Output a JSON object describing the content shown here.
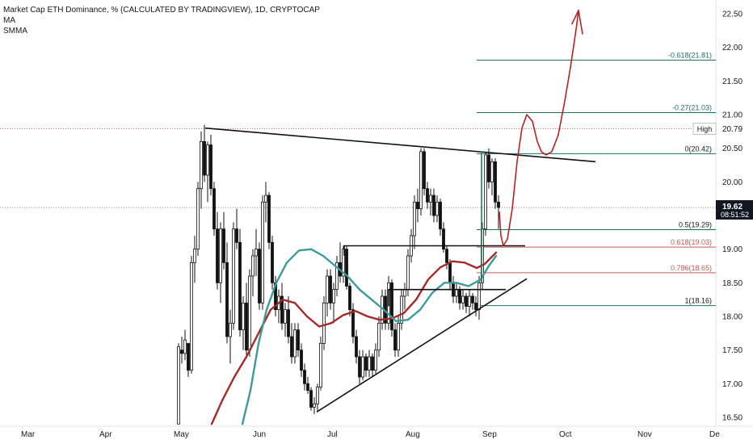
{
  "legend": {
    "title": "Market Cap ETH Dominance, % (CALCULATED BY TRADINGVIEW), 1D, CRYPTOCAP",
    "indicator_1": "MA",
    "indicator_2": "SMMA"
  },
  "price_scale": {
    "current_price": "19.62",
    "countdown": "08:51:52",
    "high_label": "High",
    "high_value": "20.79"
  },
  "colors": {
    "candle": "#111111",
    "ma_line": "#3e9a9a",
    "smma_line": "#a22a2a",
    "fib_line": "#1f6f66",
    "fib_red": "#c75a5a",
    "fib_text_green": "#1f6f66",
    "price_badge": "#131722",
    "trendline": "#111111",
    "drawing": "#b22525",
    "price_dotted": "#c04040"
  },
  "chart_data": {
    "type": "candlestick",
    "title": "Market Cap ETH Dominance, % (CALCULATED BY TRADINGVIEW), 1D, CRYPTOCAP",
    "xlabel": "",
    "ylabel": "",
    "x_ticks": [
      "Mar",
      "Apr",
      "May",
      "Jun",
      "Jul",
      "Aug",
      "Sep",
      "Oct",
      "Nov",
      "De"
    ],
    "y_ticks": [
      "22.50",
      "22.00",
      "21.50",
      "21.00",
      "20.50",
      "20.00",
      "19.50",
      "19.00",
      "18.50",
      "18.00",
      "17.50",
      "17.00",
      "16.50"
    ],
    "ylim": [
      16.4,
      22.6
    ],
    "grid": false,
    "series_description": [
      {
        "name": "MA",
        "color": "#3e9a9a"
      },
      {
        "name": "SMMA",
        "color": "#a22a2a"
      }
    ],
    "fib_levels": [
      {
        "ratio": "-0.618",
        "value": 21.81,
        "label": "-0.618(21.81)"
      },
      {
        "ratio": "-0.27",
        "value": 21.03,
        "label": "-0.27(21.03)"
      },
      {
        "ratio": "0",
        "value": 20.42,
        "label": "0(20.42)"
      },
      {
        "ratio": "0.5",
        "value": 19.29,
        "label": "0.5(19.29)"
      },
      {
        "ratio": "0.618",
        "value": 19.03,
        "label": "0.618(19.03)"
      },
      {
        "ratio": "0.786",
        "value": 18.65,
        "label": "0.786(18.65)"
      },
      {
        "ratio": "1",
        "value": 18.16,
        "label": "1(18.16)"
      }
    ],
    "high_value": 20.79,
    "current_price": 19.62,
    "ma": [
      {
        "x": 300,
        "y": 16.4
      },
      {
        "x": 310,
        "y": 16.9
      },
      {
        "x": 320,
        "y": 17.6
      },
      {
        "x": 330,
        "y": 18.1
      },
      {
        "x": 342,
        "y": 18.5
      },
      {
        "x": 355,
        "y": 18.8
      },
      {
        "x": 370,
        "y": 18.98
      },
      {
        "x": 385,
        "y": 19.0
      },
      {
        "x": 400,
        "y": 18.9
      },
      {
        "x": 415,
        "y": 18.75
      },
      {
        "x": 430,
        "y": 18.6
      },
      {
        "x": 445,
        "y": 18.4
      },
      {
        "x": 460,
        "y": 18.25
      },
      {
        "x": 475,
        "y": 18.1
      },
      {
        "x": 490,
        "y": 17.93
      },
      {
        "x": 505,
        "y": 17.95
      },
      {
        "x": 520,
        "y": 18.1
      },
      {
        "x": 535,
        "y": 18.35
      },
      {
        "x": 550,
        "y": 18.5
      },
      {
        "x": 565,
        "y": 18.5
      },
      {
        "x": 580,
        "y": 18.45
      },
      {
        "x": 595,
        "y": 18.55
      },
      {
        "x": 605,
        "y": 18.75
      },
      {
        "x": 614,
        "y": 18.9
      }
    ],
    "smma": [
      {
        "x": 262,
        "y": 16.4
      },
      {
        "x": 275,
        "y": 16.75
      },
      {
        "x": 290,
        "y": 17.1
      },
      {
        "x": 305,
        "y": 17.4
      },
      {
        "x": 320,
        "y": 17.75
      },
      {
        "x": 335,
        "y": 18.1
      },
      {
        "x": 350,
        "y": 18.25
      },
      {
        "x": 365,
        "y": 18.2
      },
      {
        "x": 380,
        "y": 18.0
      },
      {
        "x": 395,
        "y": 17.85
      },
      {
        "x": 410,
        "y": 17.9
      },
      {
        "x": 425,
        "y": 18.02
      },
      {
        "x": 440,
        "y": 18.08
      },
      {
        "x": 455,
        "y": 18.0
      },
      {
        "x": 470,
        "y": 17.95
      },
      {
        "x": 485,
        "y": 17.97
      },
      {
        "x": 500,
        "y": 18.05
      },
      {
        "x": 515,
        "y": 18.25
      },
      {
        "x": 530,
        "y": 18.55
      },
      {
        "x": 545,
        "y": 18.73
      },
      {
        "x": 560,
        "y": 18.82
      },
      {
        "x": 575,
        "y": 18.8
      },
      {
        "x": 590,
        "y": 18.72
      },
      {
        "x": 600,
        "y": 18.78
      },
      {
        "x": 614,
        "y": 18.95
      }
    ],
    "candles": [
      {
        "x": 221,
        "o": 16.4,
        "h": 17.6,
        "l": 16.4,
        "c": 17.55
      },
      {
        "x": 225,
        "o": 17.5,
        "h": 17.7,
        "l": 17.3,
        "c": 17.45
      },
      {
        "x": 229,
        "o": 17.45,
        "h": 17.8,
        "l": 17.35,
        "c": 17.65
      },
      {
        "x": 233,
        "o": 17.6,
        "h": 17.6,
        "l": 17.1,
        "c": 17.2
      },
      {
        "x": 237,
        "o": 17.2,
        "h": 18.9,
        "l": 17.15,
        "c": 18.8
      },
      {
        "x": 241,
        "o": 18.8,
        "h": 19.2,
        "l": 18.5,
        "c": 19.0
      },
      {
        "x": 245,
        "o": 19.0,
        "h": 20.0,
        "l": 18.9,
        "c": 19.9
      },
      {
        "x": 249,
        "o": 19.9,
        "h": 20.75,
        "l": 19.6,
        "c": 20.6
      },
      {
        "x": 253,
        "o": 20.6,
        "h": 20.85,
        "l": 20.0,
        "c": 20.1
      },
      {
        "x": 257,
        "o": 20.1,
        "h": 20.6,
        "l": 19.7,
        "c": 20.55
      },
      {
        "x": 261,
        "o": 20.55,
        "h": 20.7,
        "l": 19.8,
        "c": 19.9
      },
      {
        "x": 265,
        "o": 19.9,
        "h": 20.0,
        "l": 19.2,
        "c": 19.3
      },
      {
        "x": 269,
        "o": 19.3,
        "h": 19.55,
        "l": 18.4,
        "c": 18.5
      },
      {
        "x": 273,
        "o": 18.5,
        "h": 19.4,
        "l": 18.2,
        "c": 19.3
      },
      {
        "x": 277,
        "o": 19.3,
        "h": 19.55,
        "l": 18.7,
        "c": 18.8
      },
      {
        "x": 281,
        "o": 18.8,
        "h": 19.1,
        "l": 17.6,
        "c": 17.7
      },
      {
        "x": 285,
        "o": 17.7,
        "h": 18.1,
        "l": 17.3,
        "c": 17.9
      },
      {
        "x": 289,
        "o": 17.9,
        "h": 19.4,
        "l": 17.8,
        "c": 19.3
      },
      {
        "x": 293,
        "o": 19.3,
        "h": 19.6,
        "l": 19.0,
        "c": 19.1
      },
      {
        "x": 297,
        "o": 19.1,
        "h": 19.3,
        "l": 17.7,
        "c": 17.8
      },
      {
        "x": 301,
        "o": 17.8,
        "h": 18.3,
        "l": 17.5,
        "c": 18.2
      },
      {
        "x": 305,
        "o": 18.2,
        "h": 18.5,
        "l": 17.4,
        "c": 17.5
      },
      {
        "x": 309,
        "o": 17.5,
        "h": 18.7,
        "l": 17.4,
        "c": 18.6
      },
      {
        "x": 313,
        "o": 18.6,
        "h": 19.0,
        "l": 18.3,
        "c": 18.9
      },
      {
        "x": 317,
        "o": 18.9,
        "h": 19.3,
        "l": 18.6,
        "c": 19.0
      },
      {
        "x": 321,
        "o": 19.0,
        "h": 19.1,
        "l": 18.1,
        "c": 18.2
      },
      {
        "x": 325,
        "o": 18.2,
        "h": 19.8,
        "l": 18.1,
        "c": 19.7
      },
      {
        "x": 329,
        "o": 19.7,
        "h": 20.0,
        "l": 19.4,
        "c": 19.8
      },
      {
        "x": 333,
        "o": 19.8,
        "h": 19.85,
        "l": 19.0,
        "c": 19.1
      },
      {
        "x": 337,
        "o": 19.1,
        "h": 19.2,
        "l": 18.4,
        "c": 18.5
      },
      {
        "x": 341,
        "o": 18.5,
        "h": 18.6,
        "l": 18.0,
        "c": 18.1
      },
      {
        "x": 345,
        "o": 18.1,
        "h": 18.4,
        "l": 17.9,
        "c": 18.3
      },
      {
        "x": 349,
        "o": 18.3,
        "h": 18.5,
        "l": 17.8,
        "c": 17.9
      },
      {
        "x": 353,
        "o": 17.9,
        "h": 18.2,
        "l": 17.7,
        "c": 18.1
      },
      {
        "x": 357,
        "o": 18.1,
        "h": 18.3,
        "l": 17.6,
        "c": 17.7
      },
      {
        "x": 361,
        "o": 17.7,
        "h": 17.9,
        "l": 17.3,
        "c": 17.4
      },
      {
        "x": 365,
        "o": 17.4,
        "h": 17.9,
        "l": 17.3,
        "c": 17.8
      },
      {
        "x": 369,
        "o": 17.8,
        "h": 17.9,
        "l": 17.4,
        "c": 17.5
      },
      {
        "x": 373,
        "o": 17.5,
        "h": 17.6,
        "l": 17.1,
        "c": 17.2
      },
      {
        "x": 377,
        "o": 17.2,
        "h": 17.3,
        "l": 16.9,
        "c": 17.0
      },
      {
        "x": 381,
        "o": 17.0,
        "h": 17.1,
        "l": 16.85,
        "c": 16.9
      },
      {
        "x": 385,
        "o": 16.9,
        "h": 16.95,
        "l": 16.6,
        "c": 16.65
      },
      {
        "x": 389,
        "o": 16.65,
        "h": 16.8,
        "l": 16.55,
        "c": 16.7
      },
      {
        "x": 393,
        "o": 16.7,
        "h": 17.0,
        "l": 16.6,
        "c": 16.95
      },
      {
        "x": 397,
        "o": 16.95,
        "h": 17.7,
        "l": 16.9,
        "c": 17.6
      },
      {
        "x": 401,
        "o": 17.6,
        "h": 18.3,
        "l": 17.5,
        "c": 18.2
      },
      {
        "x": 405,
        "o": 18.2,
        "h": 18.7,
        "l": 18.0,
        "c": 18.6
      },
      {
        "x": 409,
        "o": 18.6,
        "h": 18.7,
        "l": 18.1,
        "c": 18.2
      },
      {
        "x": 413,
        "o": 18.2,
        "h": 18.5,
        "l": 17.9,
        "c": 18.4
      },
      {
        "x": 417,
        "o": 18.4,
        "h": 18.9,
        "l": 18.3,
        "c": 18.8
      },
      {
        "x": 421,
        "o": 18.8,
        "h": 19.1,
        "l": 18.5,
        "c": 18.6
      },
      {
        "x": 425,
        "o": 18.6,
        "h": 19.05,
        "l": 18.5,
        "c": 19.0
      },
      {
        "x": 429,
        "o": 19.0,
        "h": 19.05,
        "l": 18.4,
        "c": 18.45
      },
      {
        "x": 433,
        "o": 18.45,
        "h": 18.5,
        "l": 18.0,
        "c": 18.1
      },
      {
        "x": 437,
        "o": 18.1,
        "h": 18.2,
        "l": 17.6,
        "c": 17.7
      },
      {
        "x": 441,
        "o": 17.7,
        "h": 17.8,
        "l": 17.3,
        "c": 17.4
      },
      {
        "x": 445,
        "o": 17.4,
        "h": 17.5,
        "l": 17.0,
        "c": 17.1
      },
      {
        "x": 449,
        "o": 17.1,
        "h": 17.5,
        "l": 17.05,
        "c": 17.4
      },
      {
        "x": 453,
        "o": 17.4,
        "h": 17.45,
        "l": 17.1,
        "c": 17.2
      },
      {
        "x": 457,
        "o": 17.2,
        "h": 17.5,
        "l": 17.1,
        "c": 17.4
      },
      {
        "x": 461,
        "o": 17.4,
        "h": 17.45,
        "l": 17.1,
        "c": 17.2
      },
      {
        "x": 465,
        "o": 17.2,
        "h": 17.6,
        "l": 17.15,
        "c": 17.5
      },
      {
        "x": 469,
        "o": 17.5,
        "h": 18.0,
        "l": 17.4,
        "c": 17.9
      },
      {
        "x": 473,
        "o": 17.9,
        "h": 18.4,
        "l": 17.8,
        "c": 18.3
      },
      {
        "x": 477,
        "o": 18.3,
        "h": 18.4,
        "l": 17.8,
        "c": 17.9
      },
      {
        "x": 481,
        "o": 17.9,
        "h": 18.6,
        "l": 17.8,
        "c": 18.5
      },
      {
        "x": 485,
        "o": 18.5,
        "h": 18.55,
        "l": 17.7,
        "c": 17.8
      },
      {
        "x": 489,
        "o": 17.8,
        "h": 17.9,
        "l": 17.4,
        "c": 17.5
      },
      {
        "x": 493,
        "o": 17.5,
        "h": 18.0,
        "l": 17.4,
        "c": 17.9
      },
      {
        "x": 497,
        "o": 17.9,
        "h": 18.4,
        "l": 17.8,
        "c": 18.3
      },
      {
        "x": 501,
        "o": 18.3,
        "h": 18.5,
        "l": 18.1,
        "c": 18.4
      },
      {
        "x": 505,
        "o": 18.4,
        "h": 19.0,
        "l": 18.3,
        "c": 18.9
      },
      {
        "x": 509,
        "o": 18.9,
        "h": 19.3,
        "l": 18.8,
        "c": 19.2
      },
      {
        "x": 513,
        "o": 19.2,
        "h": 19.8,
        "l": 19.0,
        "c": 19.7
      },
      {
        "x": 517,
        "o": 19.7,
        "h": 19.9,
        "l": 19.4,
        "c": 19.6
      },
      {
        "x": 521,
        "o": 19.6,
        "h": 20.5,
        "l": 19.5,
        "c": 20.45
      },
      {
        "x": 525,
        "o": 20.45,
        "h": 20.5,
        "l": 19.8,
        "c": 19.9
      },
      {
        "x": 529,
        "o": 19.9,
        "h": 20.0,
        "l": 19.6,
        "c": 19.7
      },
      {
        "x": 533,
        "o": 19.7,
        "h": 19.9,
        "l": 19.5,
        "c": 19.8
      },
      {
        "x": 537,
        "o": 19.8,
        "h": 19.9,
        "l": 19.4,
        "c": 19.5
      },
      {
        "x": 541,
        "o": 19.5,
        "h": 19.8,
        "l": 19.4,
        "c": 19.7
      },
      {
        "x": 545,
        "o": 19.7,
        "h": 19.75,
        "l": 19.2,
        "c": 19.3
      },
      {
        "x": 549,
        "o": 19.3,
        "h": 19.4,
        "l": 18.95,
        "c": 19.0
      },
      {
        "x": 553,
        "o": 19.0,
        "h": 19.05,
        "l": 18.7,
        "c": 18.8
      },
      {
        "x": 557,
        "o": 18.8,
        "h": 18.85,
        "l": 18.4,
        "c": 18.5
      },
      {
        "x": 561,
        "o": 18.5,
        "h": 18.6,
        "l": 18.2,
        "c": 18.3
      },
      {
        "x": 565,
        "o": 18.3,
        "h": 18.5,
        "l": 18.2,
        "c": 18.4
      },
      {
        "x": 569,
        "o": 18.4,
        "h": 18.45,
        "l": 18.1,
        "c": 18.2
      },
      {
        "x": 573,
        "o": 18.2,
        "h": 18.4,
        "l": 18.1,
        "c": 18.3
      },
      {
        "x": 577,
        "o": 18.3,
        "h": 18.35,
        "l": 18.05,
        "c": 18.15
      },
      {
        "x": 581,
        "o": 18.15,
        "h": 18.4,
        "l": 18.0,
        "c": 18.3
      },
      {
        "x": 585,
        "o": 18.3,
        "h": 18.35,
        "l": 18.1,
        "c": 18.2
      },
      {
        "x": 589,
        "o": 18.2,
        "h": 18.3,
        "l": 18.0,
        "c": 18.1
      },
      {
        "x": 593,
        "o": 18.1,
        "h": 18.6,
        "l": 17.95,
        "c": 18.5
      },
      {
        "x": 597,
        "o": 18.5,
        "h": 19.4,
        "l": 18.4,
        "c": 19.3
      },
      {
        "x": 601,
        "o": 19.3,
        "h": 20.45,
        "l": 19.2,
        "c": 20.4
      },
      {
        "x": 605,
        "o": 20.4,
        "h": 20.5,
        "l": 19.9,
        "c": 20.0
      },
      {
        "x": 609,
        "o": 20.0,
        "h": 20.35,
        "l": 19.8,
        "c": 20.3
      },
      {
        "x": 613,
        "o": 20.3,
        "h": 20.35,
        "l": 19.6,
        "c": 19.7
      },
      {
        "x": 617,
        "o": 19.7,
        "h": 19.8,
        "l": 19.3,
        "c": 19.62
      }
    ]
  }
}
